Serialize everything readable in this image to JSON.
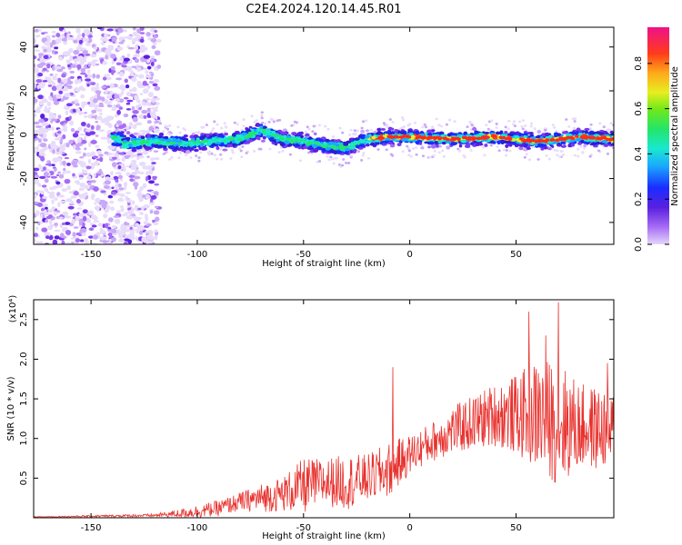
{
  "figure": {
    "title": "C2E4.2024.120.14.45.R01"
  },
  "chart_data": [
    {
      "type": "heatmap",
      "panel": "top",
      "xlabel": "Height of straight line (km)",
      "ylabel": "Frequency (Hz)",
      "xlim": [
        -177,
        96
      ],
      "ylim": [
        -50,
        49
      ],
      "xticks": [
        -150,
        -100,
        -50,
        0,
        50
      ],
      "yticks": [
        -40,
        -20,
        0,
        20,
        40
      ],
      "colorbar": {
        "label": "Normalized spectral amplitude",
        "ticks": [
          "0.0",
          "0.2",
          "0.4",
          "0.6",
          "0.8"
        ],
        "range": [
          0,
          0.96
        ]
      },
      "signal_band_center": [
        {
          "x": -135,
          "y": -4
        },
        {
          "x": -120,
          "y": -3
        },
        {
          "x": -105,
          "y": -4
        },
        {
          "x": -95,
          "y": -3
        },
        {
          "x": -80,
          "y": -2
        },
        {
          "x": -70,
          "y": 2
        },
        {
          "x": -60,
          "y": -2
        },
        {
          "x": -50,
          "y": -3
        },
        {
          "x": -40,
          "y": -5
        },
        {
          "x": -30,
          "y": -6
        },
        {
          "x": -20,
          "y": -2
        },
        {
          "x": -10,
          "y": -1
        },
        {
          "x": 0,
          "y": -1
        },
        {
          "x": 20,
          "y": -2
        },
        {
          "x": 40,
          "y": -1
        },
        {
          "x": 60,
          "y": -3
        },
        {
          "x": 80,
          "y": -1
        },
        {
          "x": 95,
          "y": -2
        }
      ],
      "broadband_noise_region_x": [
        -177,
        -118
      ]
    },
    {
      "type": "line",
      "panel": "bottom",
      "xlabel": "Height of straight line (km)",
      "ylabel": "SNR (10 * v/v)",
      "y_multiplier": "(x10⁴)",
      "xlim": [
        -177,
        96
      ],
      "ylim": [
        0,
        2.75
      ],
      "xticks": [
        -150,
        -100,
        -50,
        0,
        50
      ],
      "yticks": [
        "0.5",
        "1.0",
        "1.5",
        "2.0",
        "2.5"
      ],
      "series_color": "#e8322e",
      "envelope": [
        {
          "x": -177,
          "mean": 0.01,
          "spread": 0.005
        },
        {
          "x": -120,
          "mean": 0.03,
          "spread": 0.02
        },
        {
          "x": -110,
          "mean": 0.05,
          "spread": 0.05
        },
        {
          "x": -100,
          "mean": 0.08,
          "spread": 0.08
        },
        {
          "x": -90,
          "mean": 0.12,
          "spread": 0.1
        },
        {
          "x": -80,
          "mean": 0.2,
          "spread": 0.12
        },
        {
          "x": -70,
          "mean": 0.25,
          "spread": 0.18
        },
        {
          "x": -60,
          "mean": 0.3,
          "spread": 0.22
        },
        {
          "x": -50,
          "mean": 0.4,
          "spread": 0.35
        },
        {
          "x": -40,
          "mean": 0.45,
          "spread": 0.3
        },
        {
          "x": -30,
          "mean": 0.45,
          "spread": 0.35
        },
        {
          "x": -20,
          "mean": 0.5,
          "spread": 0.3
        },
        {
          "x": -10,
          "mean": 0.6,
          "spread": 0.35
        },
        {
          "x": 0,
          "mean": 0.8,
          "spread": 0.25
        },
        {
          "x": 10,
          "mean": 0.95,
          "spread": 0.25
        },
        {
          "x": 20,
          "mean": 1.1,
          "spread": 0.3
        },
        {
          "x": 30,
          "mean": 1.2,
          "spread": 0.35
        },
        {
          "x": 40,
          "mean": 1.3,
          "spread": 0.4
        },
        {
          "x": 50,
          "mean": 1.3,
          "spread": 0.5
        },
        {
          "x": 60,
          "mean": 1.3,
          "spread": 0.7
        },
        {
          "x": 70,
          "mean": 1.2,
          "spread": 0.8
        },
        {
          "x": 80,
          "mean": 1.15,
          "spread": 0.55
        },
        {
          "x": 96,
          "mean": 1.1,
          "spread": 0.5
        }
      ],
      "peaks": [
        {
          "x": -8,
          "y": 1.9
        },
        {
          "x": 56,
          "y": 2.6
        },
        {
          "x": 70,
          "y": 2.72
        },
        {
          "x": 64,
          "y": 2.3
        },
        {
          "x": 93,
          "y": 1.95
        }
      ]
    }
  ]
}
